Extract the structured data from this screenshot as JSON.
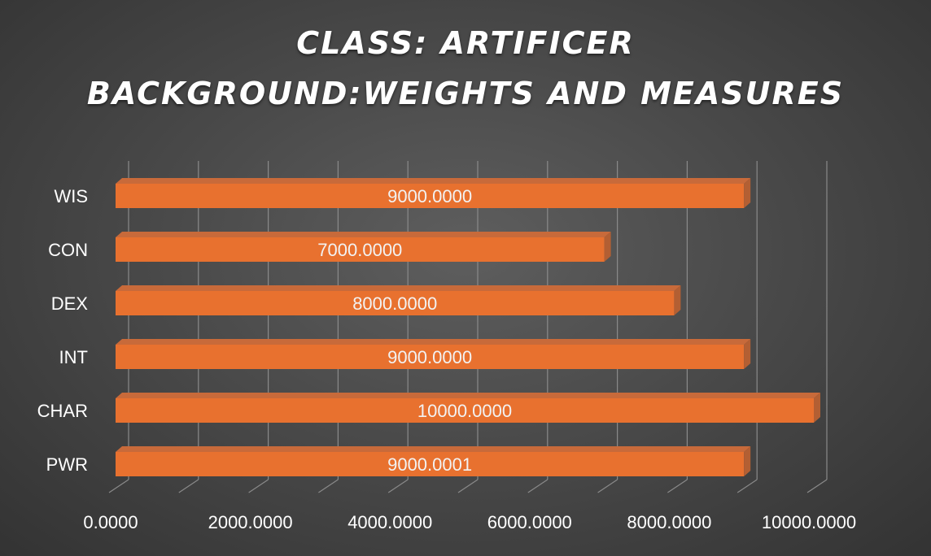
{
  "chart_data": {
    "type": "bar",
    "orientation": "horizontal",
    "title_lines": [
      "CLASS: ARTIFICER",
      "BACKGROUND:WEIGHTS AND MEASURES"
    ],
    "categories": [
      "WIS",
      "CON",
      "DEX",
      "INT",
      "CHAR",
      "PWR"
    ],
    "values": [
      9000.0,
      7000.0,
      8000.0,
      9000.0,
      10000.0,
      9000.0001
    ],
    "value_labels": [
      "9000.0000",
      "7000.0000",
      "8000.0000",
      "9000.0000",
      "10000.0000",
      "9000.0001"
    ],
    "x_ticks": [
      0,
      2000,
      4000,
      6000,
      8000,
      10000
    ],
    "x_tick_labels": [
      "0.0000",
      "2000.0000",
      "4000.0000",
      "6000.0000",
      "8000.0000",
      "10000.0000"
    ],
    "xlim": [
      0,
      10000
    ],
    "grid": true,
    "legend": "none",
    "bar_color": "#e8712f"
  }
}
